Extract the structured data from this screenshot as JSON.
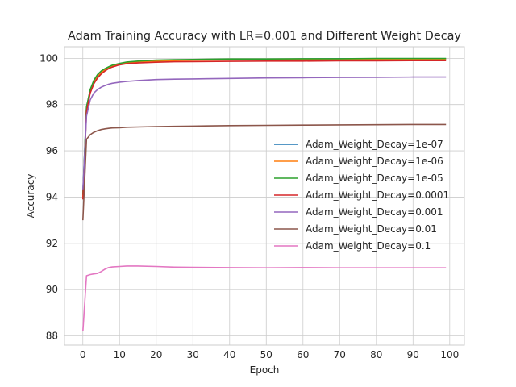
{
  "chart_data": {
    "type": "line",
    "title": "Adam Training Accuracy with LR=0.001 and Different Weight Decay",
    "xlabel": "Epoch",
    "ylabel": "Accuracy",
    "xlim": [
      -5,
      104
    ],
    "ylim": [
      87.6,
      100.5
    ],
    "xticks": [
      0,
      10,
      20,
      30,
      40,
      50,
      60,
      70,
      80,
      90,
      100
    ],
    "yticks": [
      88,
      90,
      92,
      94,
      96,
      98,
      100
    ],
    "grid": true,
    "legend_position": "center-right",
    "series": [
      {
        "name": "Adam_Weight_Decay=1e-07",
        "color": "#1f77b4",
        "x": [
          0,
          1,
          2,
          3,
          4,
          5,
          6,
          7,
          8,
          10,
          12,
          15,
          20,
          25,
          30,
          40,
          50,
          60,
          70,
          80,
          90,
          99
        ],
        "y": [
          94.2,
          97.9,
          98.6,
          99.0,
          99.25,
          99.4,
          99.5,
          99.6,
          99.65,
          99.75,
          99.8,
          99.85,
          99.9,
          99.92,
          99.93,
          99.95,
          99.96,
          99.97,
          99.98,
          99.98,
          99.98,
          99.98
        ]
      },
      {
        "name": "Adam_Weight_Decay=1e-06",
        "color": "#ff7f0e",
        "x": [
          0,
          1,
          2,
          3,
          4,
          5,
          6,
          7,
          8,
          10,
          12,
          15,
          20,
          25,
          30,
          40,
          50,
          60,
          70,
          80,
          90,
          99
        ],
        "y": [
          94.0,
          97.8,
          98.55,
          98.95,
          99.2,
          99.38,
          99.5,
          99.58,
          99.65,
          99.75,
          99.8,
          99.85,
          99.88,
          99.9,
          99.92,
          99.93,
          99.94,
          99.95,
          99.96,
          99.96,
          99.97,
          99.97
        ]
      },
      {
        "name": "Adam_Weight_Decay=1e-05",
        "color": "#2ca02c",
        "x": [
          0,
          1,
          2,
          3,
          4,
          5,
          6,
          7,
          8,
          10,
          12,
          15,
          20,
          25,
          30,
          40,
          50,
          60,
          70,
          80,
          90,
          99
        ],
        "y": [
          94.1,
          97.9,
          98.65,
          99.05,
          99.3,
          99.45,
          99.55,
          99.63,
          99.7,
          99.78,
          99.84,
          99.88,
          99.92,
          99.94,
          99.95,
          99.97,
          99.97,
          99.98,
          99.98,
          99.99,
          99.99,
          99.99
        ]
      },
      {
        "name": "Adam_Weight_Decay=0.0001",
        "color": "#d62728",
        "x": [
          0,
          1,
          2,
          3,
          4,
          5,
          6,
          7,
          8,
          10,
          12,
          15,
          20,
          25,
          30,
          40,
          50,
          60,
          70,
          80,
          90,
          99
        ],
        "y": [
          93.9,
          97.7,
          98.5,
          98.9,
          99.15,
          99.32,
          99.45,
          99.55,
          99.62,
          99.72,
          99.77,
          99.8,
          99.83,
          99.85,
          99.86,
          99.87,
          99.88,
          99.88,
          99.89,
          99.89,
          99.9,
          99.9
        ]
      },
      {
        "name": "Adam_Weight_Decay=0.001",
        "color": "#9467bd",
        "x": [
          0,
          1,
          2,
          3,
          4,
          5,
          6,
          7,
          8,
          10,
          12,
          15,
          20,
          25,
          30,
          40,
          50,
          60,
          70,
          80,
          90,
          99
        ],
        "y": [
          94.3,
          97.5,
          98.2,
          98.5,
          98.65,
          98.75,
          98.82,
          98.88,
          98.92,
          98.97,
          99.0,
          99.04,
          99.08,
          99.1,
          99.11,
          99.13,
          99.15,
          99.16,
          99.17,
          99.18,
          99.19,
          99.19
        ]
      },
      {
        "name": "Adam_Weight_Decay=0.01",
        "color": "#8c564b",
        "x": [
          0,
          1,
          2,
          3,
          4,
          5,
          6,
          7,
          8,
          10,
          12,
          15,
          20,
          25,
          30,
          40,
          50,
          60,
          70,
          80,
          90,
          99
        ],
        "y": [
          93.0,
          96.5,
          96.7,
          96.8,
          96.87,
          96.92,
          96.95,
          96.97,
          96.99,
          97.0,
          97.02,
          97.03,
          97.05,
          97.06,
          97.07,
          97.09,
          97.1,
          97.11,
          97.12,
          97.13,
          97.14,
          97.14
        ]
      },
      {
        "name": "Adam_Weight_Decay=0.1",
        "color": "#e377c2",
        "x": [
          0,
          1,
          2,
          3,
          4,
          5,
          6,
          7,
          8,
          10,
          12,
          15,
          20,
          25,
          30,
          40,
          50,
          60,
          70,
          80,
          90,
          99
        ],
        "y": [
          88.2,
          90.6,
          90.65,
          90.68,
          90.7,
          90.78,
          90.88,
          90.95,
          90.98,
          91.0,
          91.02,
          91.02,
          91.0,
          90.97,
          90.96,
          90.95,
          90.94,
          90.95,
          90.94,
          90.94,
          90.94,
          90.94
        ]
      }
    ]
  }
}
